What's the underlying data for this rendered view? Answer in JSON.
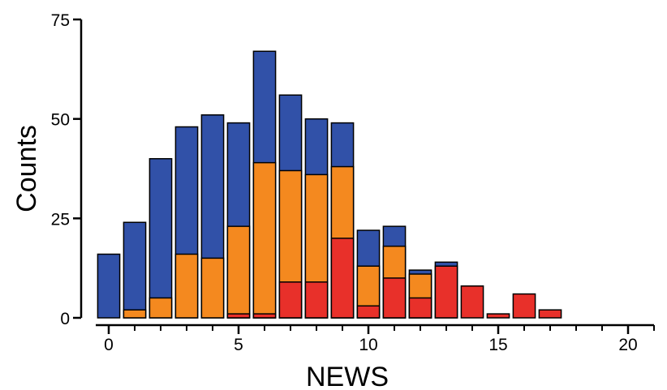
{
  "chart_data": {
    "type": "bar",
    "xlabel": "NEWS",
    "ylabel": "Counts",
    "x": [
      0,
      1,
      2,
      3,
      4,
      5,
      6,
      7,
      8,
      9,
      10,
      11,
      12,
      13,
      14,
      15,
      16,
      17
    ],
    "series": [
      {
        "color": "#3151a8",
        "values": [
          16,
          24,
          40,
          48,
          51,
          49,
          67,
          56,
          50,
          49,
          22,
          23,
          12,
          14,
          0,
          0,
          0,
          0
        ]
      },
      {
        "color": "#f4891f",
        "values": [
          0,
          2,
          5,
          16,
          15,
          23,
          39,
          37,
          36,
          38,
          13,
          18,
          11,
          0,
          0,
          0,
          0,
          0
        ]
      },
      {
        "color": "#e8302a",
        "values": [
          0,
          0,
          0,
          0,
          0,
          1,
          1,
          9,
          9,
          20,
          3,
          10,
          5,
          13,
          8,
          1,
          6,
          2
        ]
      }
    ],
    "xlim": [
      -0.5,
      21
    ],
    "xticks": [
      0,
      5,
      10,
      15,
      20
    ],
    "xminorticks": [
      0,
      1,
      2,
      3,
      4,
      5,
      6,
      7,
      8,
      9,
      10,
      11,
      12,
      13,
      14,
      15,
      16,
      17,
      18,
      19,
      20,
      21
    ],
    "ylim": [
      0,
      75
    ],
    "yticks": [
      0,
      25,
      50,
      75
    ]
  }
}
